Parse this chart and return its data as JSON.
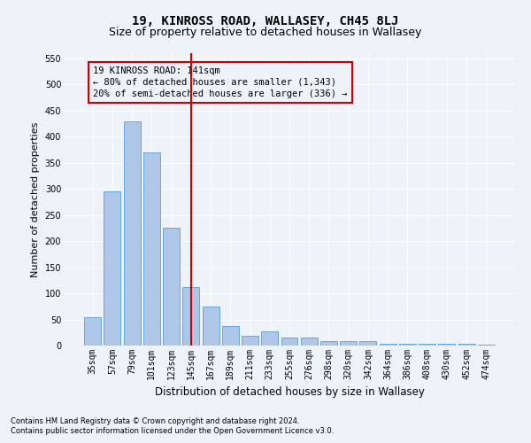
{
  "title1": "19, KINROSS ROAD, WALLASEY, CH45 8LJ",
  "title2": "Size of property relative to detached houses in Wallasey",
  "xlabel": "Distribution of detached houses by size in Wallasey",
  "ylabel": "Number of detached properties",
  "categories": [
    "35sqm",
    "57sqm",
    "79sqm",
    "101sqm",
    "123sqm",
    "145sqm",
    "167sqm",
    "189sqm",
    "211sqm",
    "233sqm",
    "255sqm",
    "276sqm",
    "298sqm",
    "320sqm",
    "342sqm",
    "364sqm",
    "386sqm",
    "408sqm",
    "430sqm",
    "452sqm",
    "474sqm"
  ],
  "values": [
    55,
    295,
    430,
    370,
    225,
    112,
    75,
    38,
    18,
    28,
    15,
    15,
    8,
    8,
    8,
    3,
    3,
    3,
    3,
    3,
    2
  ],
  "bar_color": "#aec6e8",
  "bar_edge_color": "#5a9fd4",
  "vline_x_idx": 5,
  "vline_color": "#cc0000",
  "annotation_box_text": "19 KINROSS ROAD: 141sqm\n← 80% of detached houses are smaller (1,343)\n20% of semi-detached houses are larger (336) →",
  "annotation_box_color": "#cc0000",
  "ylim": [
    0,
    560
  ],
  "yticks": [
    0,
    50,
    100,
    150,
    200,
    250,
    300,
    350,
    400,
    450,
    500,
    550
  ],
  "footer1": "Contains HM Land Registry data © Crown copyright and database right 2024.",
  "footer2": "Contains public sector information licensed under the Open Government Licence v3.0.",
  "background_color": "#eef2f9",
  "grid_color": "#ffffff",
  "title1_fontsize": 10,
  "title2_fontsize": 9,
  "tick_fontsize": 7,
  "ylabel_fontsize": 8,
  "xlabel_fontsize": 8.5,
  "footer_fontsize": 6,
  "ann_fontsize": 7.5
}
